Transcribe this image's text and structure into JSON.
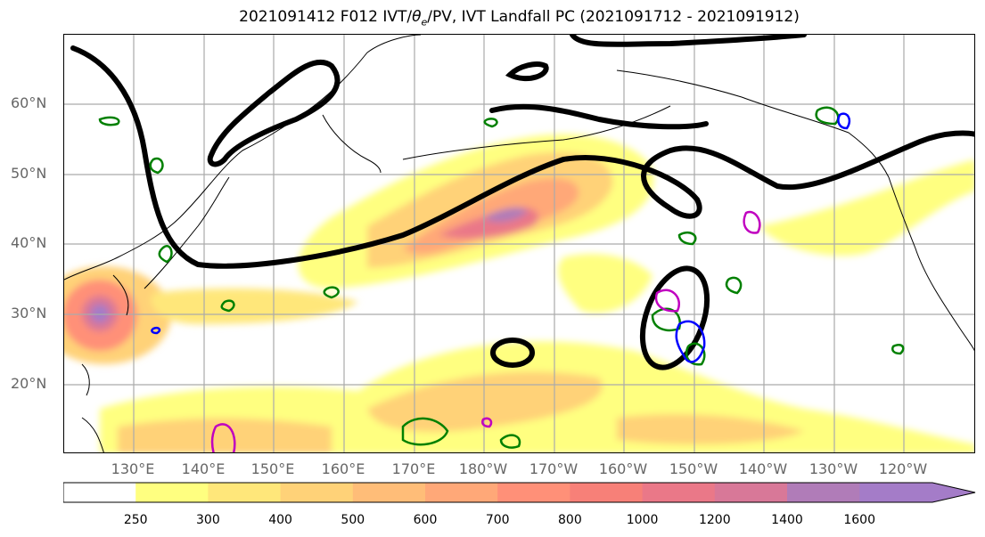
{
  "title": "2021091412 F012 IVT/θe/PV, IVT Landfall PC (2021091712 - 2021091912)",
  "title_parts": {
    "prefix": "2021091412 F012 IVT/",
    "theta": "θ",
    "theta_sub": "e",
    "suffix": "/PV, IVT Landfall PC (2021091712 - 2021091912)"
  },
  "lat_labels": [
    "60°N",
    "50°N",
    "40°N",
    "30°N",
    "20°N"
  ],
  "lon_labels": [
    "130°E",
    "140°E",
    "150°E",
    "160°E",
    "170°E",
    "180°W",
    "170°W",
    "160°W",
    "150°W",
    "140°W",
    "130°W",
    "120°W"
  ],
  "colorbar": {
    "ticks": [
      "250",
      "300",
      "400",
      "500",
      "600",
      "700",
      "800",
      "1000",
      "1200",
      "1400",
      "1600"
    ],
    "colors": [
      "#ffff80",
      "#ffe77a",
      "#ffd278",
      "#ffbd78",
      "#ffa878",
      "#ff9078",
      "#f78078",
      "#ea7888",
      "#d87898",
      "#b07cb8",
      "#a47cc8"
    ]
  },
  "colors": {
    "pc_contour": "#000000",
    "theta_contour": "#008000",
    "pv_contour_1": "#0000ff",
    "pv_contour_2": "#c000c0",
    "coastline": "#000000",
    "gridline": "#aaaaaa"
  }
}
